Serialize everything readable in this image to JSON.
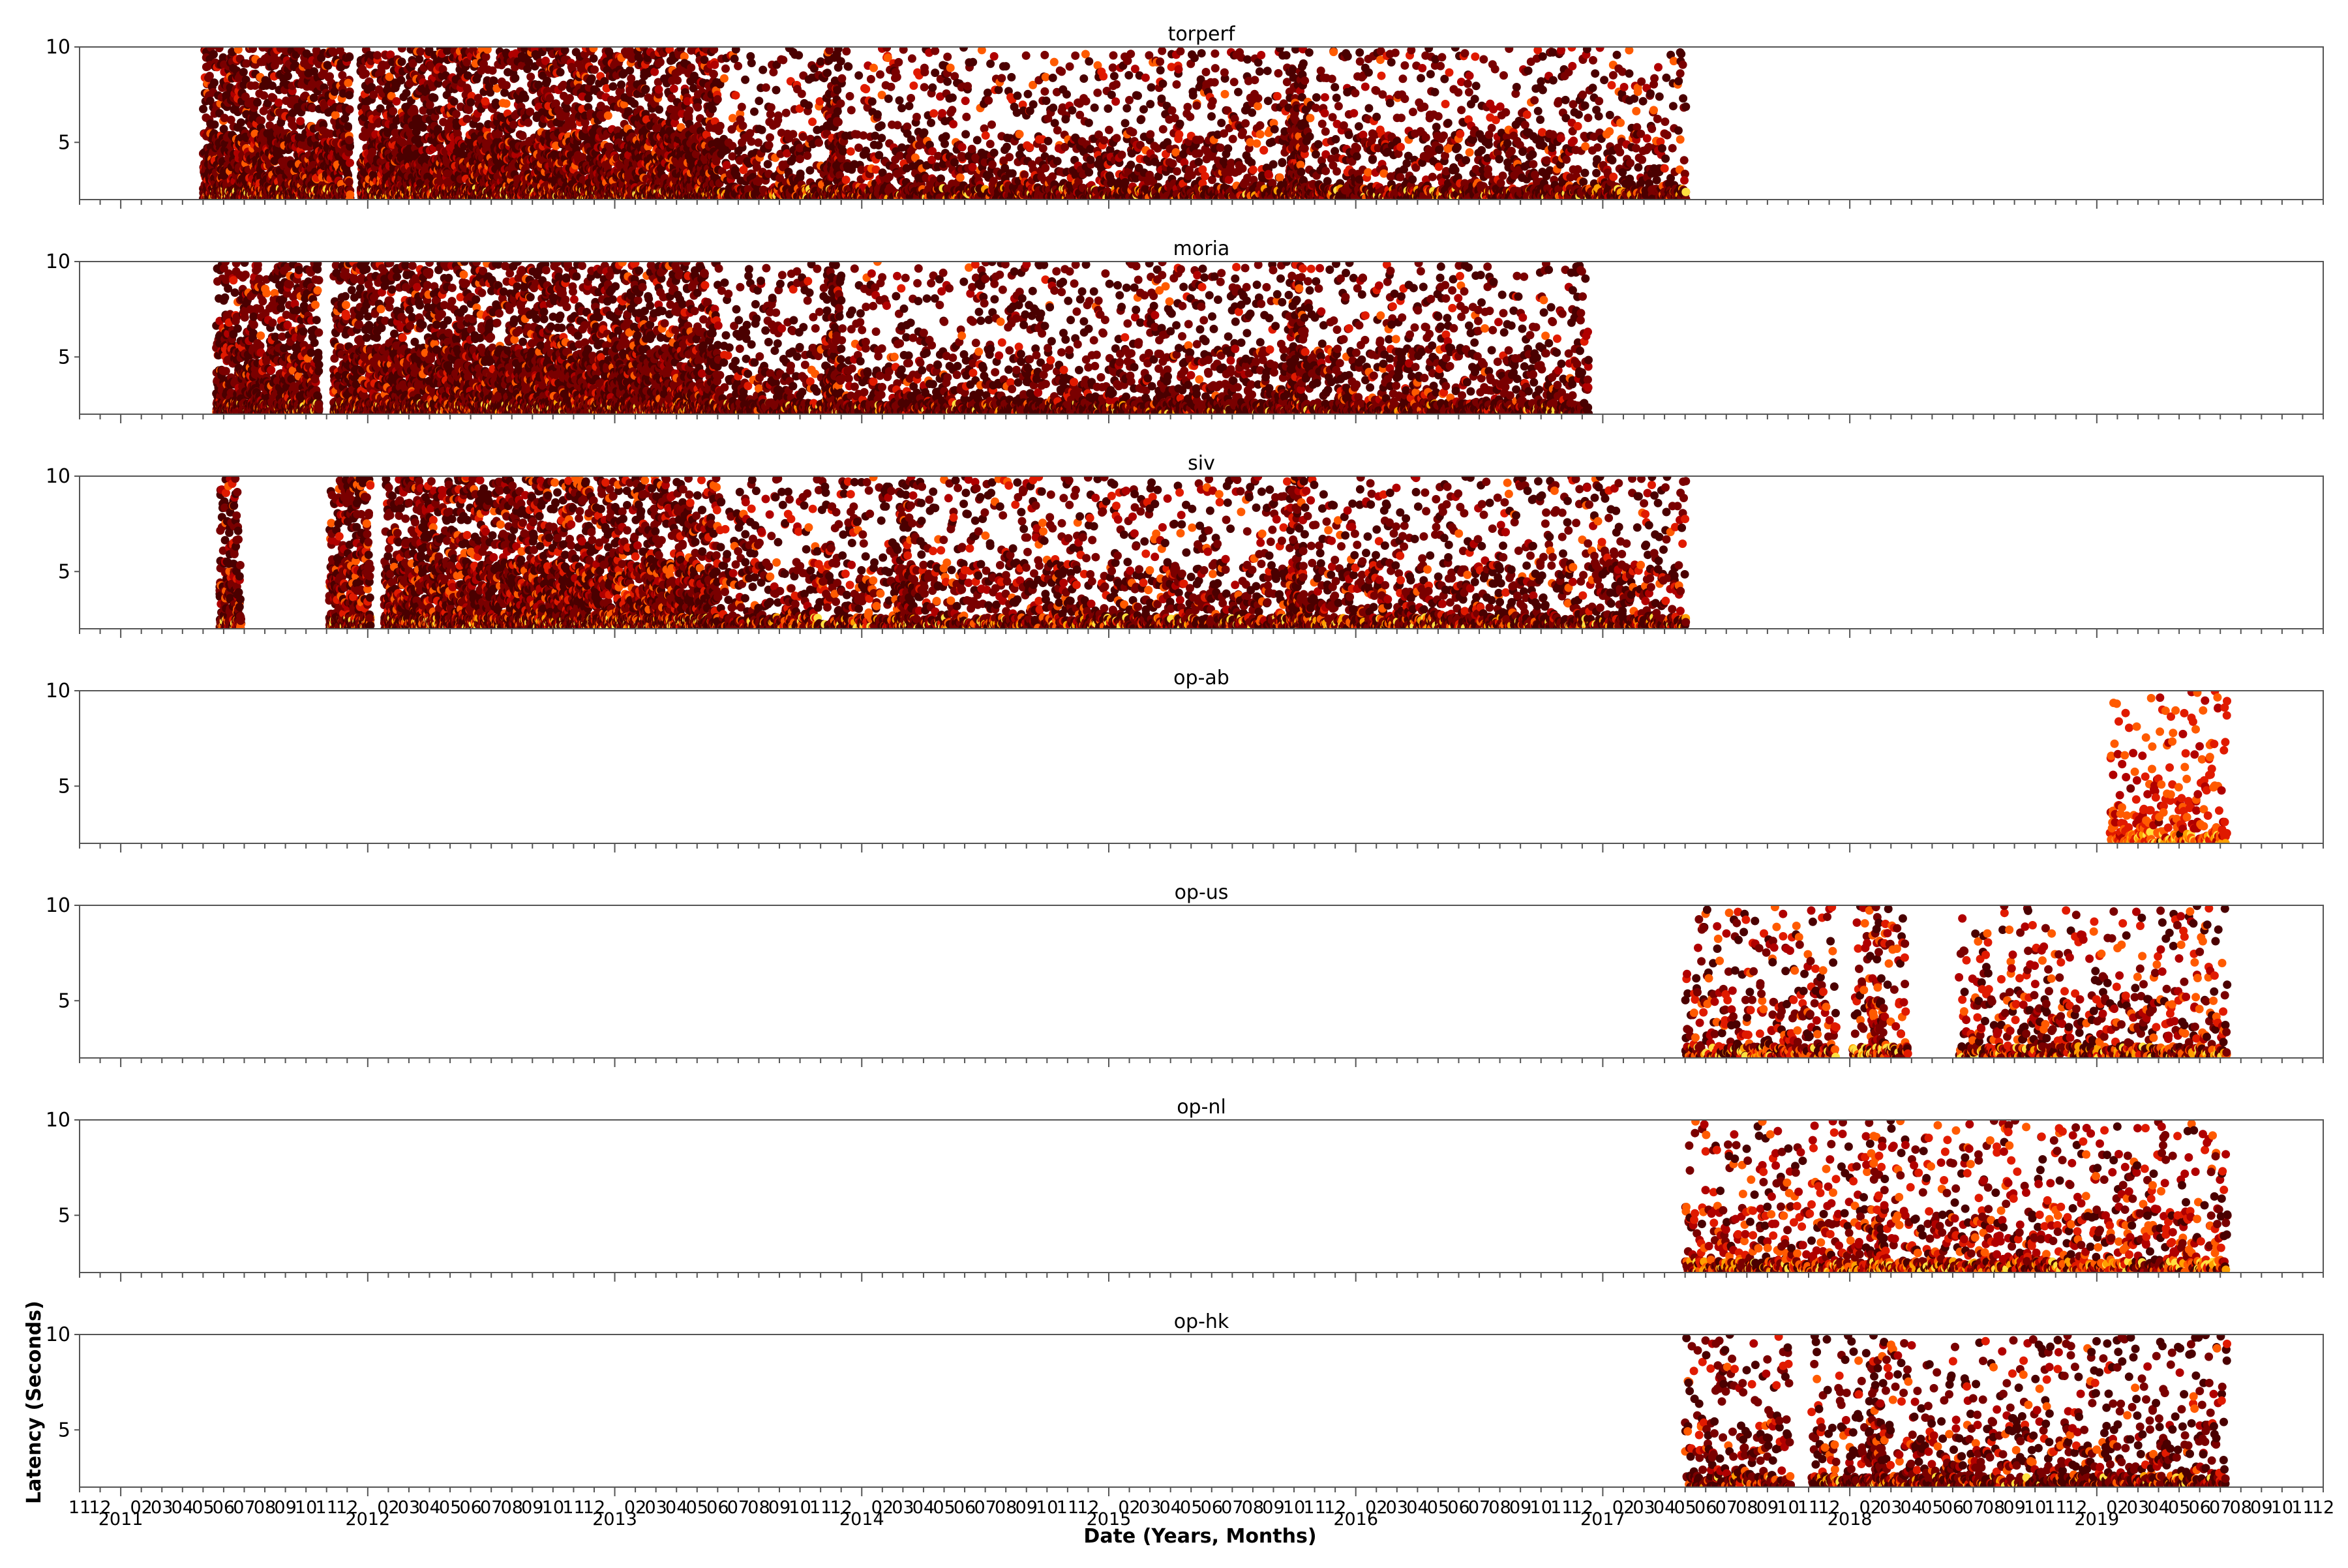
{
  "chart_data": {
    "type": "scatter",
    "xlabel": "Date (Years, Months)",
    "ylabel": "Latency (Seconds)",
    "x_range": [
      "2010-11",
      "2019-12"
    ],
    "ylim": [
      2,
      10
    ],
    "yticks": [
      5,
      10
    ],
    "year_labels": [
      "2011",
      "2012",
      "2013",
      "2014",
      "2015",
      "2016",
      "2017",
      "2018",
      "2019"
    ],
    "month_labels": [
      "11",
      "12",
      "02",
      "03",
      "04",
      "05",
      "06",
      "07",
      "08",
      "09",
      "10",
      "11",
      "12",
      "02",
      "03",
      "04",
      "05",
      "06",
      "07",
      "08",
      "09",
      "10",
      "11",
      "12",
      "02",
      "03",
      "04",
      "05",
      "06",
      "07",
      "08",
      "09",
      "10",
      "11",
      "12",
      "02",
      "03",
      "04",
      "05",
      "06",
      "07",
      "08",
      "09",
      "10",
      "11",
      "12",
      "02",
      "03",
      "04",
      "05",
      "06",
      "07",
      "08",
      "09",
      "10",
      "11",
      "12",
      "02",
      "03",
      "04",
      "05",
      "06",
      "07",
      "08",
      "09",
      "10",
      "11",
      "12",
      "02",
      "03",
      "04",
      "05",
      "06",
      "07",
      "08",
      "09",
      "10",
      "11",
      "12",
      "02",
      "03",
      "04",
      "05",
      "06",
      "07",
      "08",
      "09",
      "10",
      "11",
      "12",
      "02",
      "03",
      "04",
      "05",
      "06",
      "07",
      "08",
      "09",
      "10",
      "11",
      "12"
    ],
    "color_scale": [
      "#4a0000",
      "#7a0000",
      "#b00000",
      "#e01a00",
      "#ff5a00",
      "#ffa000",
      "#ffe040"
    ],
    "grid": false,
    "legend": "none",
    "panels": [
      {
        "name": "torperf",
        "active": [
          [
            "2011-05",
            "2017-05"
          ]
        ],
        "gaps": [
          [
            "2011-12-05",
            "2011-12-20"
          ]
        ],
        "dense_until": "2013-06",
        "spikes": [
          "2013-11-20",
          "2015-10-05"
        ],
        "intensity": 1.0,
        "hot": 0.1
      },
      {
        "name": "moria",
        "active": [
          [
            "2011-05-20",
            "2016-12-10"
          ]
        ],
        "gaps": [
          [
            "2011-10-20",
            "2011-11-10"
          ]
        ],
        "dense_until": "2013-06",
        "spikes": [
          "2013-11-20",
          "2015-10-05"
        ],
        "intensity": 0.95,
        "hot": 0.08
      },
      {
        "name": "siv",
        "active": [
          [
            "2011-05-25",
            "2011-06-25"
          ],
          [
            "2011-11-05",
            "2012-01-05"
          ],
          [
            "2012-01-25",
            "2017-05"
          ]
        ],
        "gaps": [],
        "dense_until": "2013-06",
        "spikes": [
          "2014-03-05",
          "2015-10-05"
        ],
        "intensity": 0.95,
        "hot": 0.14
      },
      {
        "name": "op-ab",
        "active": [
          [
            "2019-01-20",
            "2019-07-10"
          ]
        ],
        "gaps": [],
        "dense_until": "",
        "spikes": [],
        "intensity": 0.5,
        "hot": 0.55
      },
      {
        "name": "op-us",
        "active": [
          [
            "2017-05",
            "2017-12-10"
          ],
          [
            "2018-01-05",
            "2018-03-25"
          ],
          [
            "2018-06-10",
            "2019-07-10"
          ]
        ],
        "gaps": [],
        "dense_until": "",
        "spikes": [
          "2018-02-10"
        ],
        "intensity": 0.5,
        "hot": 0.28
      },
      {
        "name": "op-nl",
        "active": [
          [
            "2017-05",
            "2019-07-10"
          ]
        ],
        "gaps": [],
        "dense_until": "",
        "spikes": [
          "2018-02-10"
        ],
        "intensity": 0.55,
        "hot": 0.32
      },
      {
        "name": "op-hk",
        "active": [
          [
            "2017-05",
            "2017-10-05"
          ],
          [
            "2017-11-05",
            "2019-07-10"
          ]
        ],
        "gaps": [],
        "dense_until": "",
        "spikes": [
          "2018-02-10"
        ],
        "intensity": 0.6,
        "hot": 0.15
      }
    ]
  }
}
